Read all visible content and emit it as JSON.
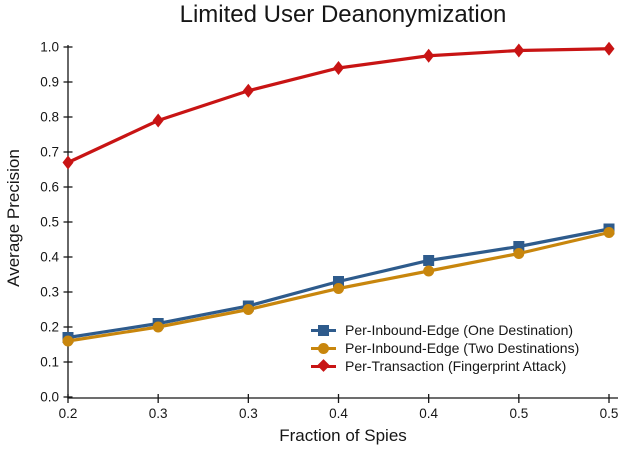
{
  "chart_data": {
    "type": "line",
    "title": "Limited User Deanonymization",
    "xlabel": "Fraction of Spies",
    "ylabel": "Average Precision",
    "x": [
      0.2,
      0.25,
      0.3,
      0.35,
      0.4,
      0.45,
      0.5
    ],
    "x_tick_labels": [
      "0.2",
      "0.3",
      "0.3",
      "0.4",
      "0.4",
      "0.5",
      "0.5"
    ],
    "y_ticks": [
      0.0,
      0.1,
      0.2,
      0.3,
      0.4,
      0.5,
      0.6,
      0.7,
      0.8,
      0.9,
      1.0
    ],
    "y_tick_labels": [
      "0.0",
      "0.1",
      "0.2",
      "0.3",
      "0.4",
      "0.5",
      "0.6",
      "0.7",
      "0.8",
      "0.9",
      "1.0"
    ],
    "xlim": [
      0.2,
      0.5
    ],
    "ylim": [
      0.0,
      1.0
    ],
    "grid": false,
    "legend_position": "inside-lower-right",
    "axis_color": "#161616",
    "series": [
      {
        "name": "Per-Inbound-Edge (One Destination)",
        "color": "#2e5b8c",
        "marker": "square",
        "values": [
          0.17,
          0.21,
          0.26,
          0.33,
          0.39,
          0.43,
          0.48
        ]
      },
      {
        "name": "Per-Inbound-Edge (Two Destinations)",
        "color": "#c8860d",
        "marker": "circle",
        "values": [
          0.16,
          0.2,
          0.25,
          0.31,
          0.36,
          0.41,
          0.47
        ]
      },
      {
        "name": "Per-Transaction (Fingerprint Attack)",
        "color": "#c81414",
        "marker": "diamond",
        "values": [
          0.67,
          0.79,
          0.875,
          0.94,
          0.975,
          0.99,
          0.995
        ]
      }
    ]
  }
}
